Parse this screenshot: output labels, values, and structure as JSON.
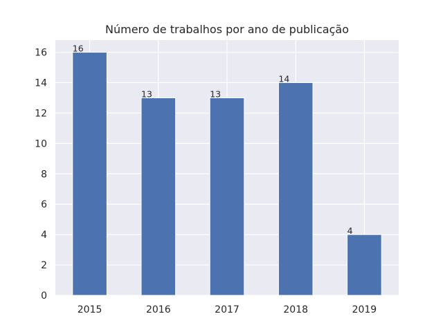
{
  "chart_data": {
    "type": "bar",
    "title": "Número de trabalhos por ano de publicação",
    "xlabel": "",
    "ylabel": "",
    "categories": [
      "2015",
      "2016",
      "2017",
      "2018",
      "2019"
    ],
    "values": [
      16,
      13,
      13,
      14,
      4
    ],
    "data_labels": [
      "16",
      "13",
      "13",
      "14",
      "4"
    ],
    "ylim": [
      0,
      16.8
    ],
    "yticks": [
      0,
      2,
      4,
      6,
      8,
      10,
      12,
      14,
      16
    ],
    "grid": true,
    "legend": "none",
    "colors": {
      "bar": "#4c72b0",
      "plot_background": "#eaeaf2",
      "grid": "#ffffff",
      "text": "#262626"
    }
  }
}
